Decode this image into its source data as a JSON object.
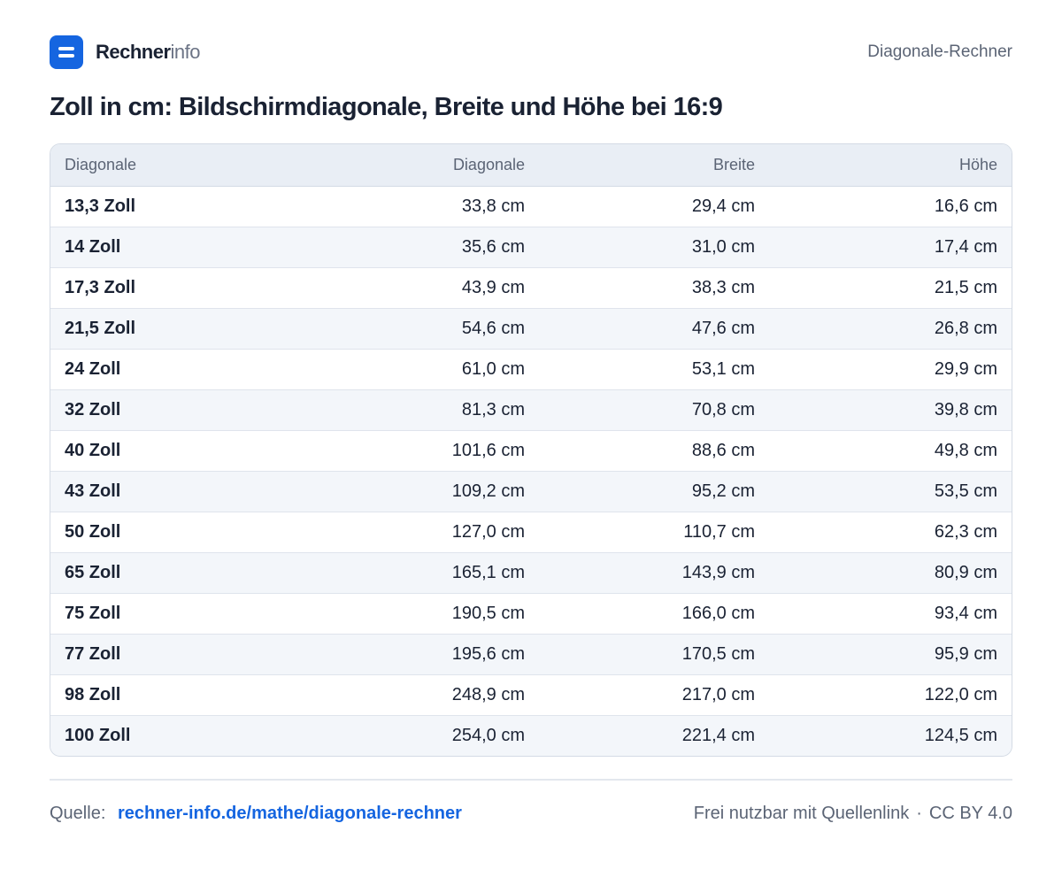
{
  "header": {
    "brand_strong": "Rechner",
    "brand_light": "info",
    "right_label": "Diagonale-Rechner"
  },
  "title": "Zoll in cm: Bildschirmdiagonale, Breite und Höhe bei 16:9",
  "table": {
    "columns": [
      "Diagonale",
      "Diagonale",
      "Breite",
      "Höhe"
    ],
    "rows": [
      [
        "13,3 Zoll",
        "33,8 cm",
        "29,4 cm",
        "16,6 cm"
      ],
      [
        "14 Zoll",
        "35,6 cm",
        "31,0 cm",
        "17,4 cm"
      ],
      [
        "17,3 Zoll",
        "43,9 cm",
        "38,3 cm",
        "21,5 cm"
      ],
      [
        "21,5 Zoll",
        "54,6 cm",
        "47,6 cm",
        "26,8 cm"
      ],
      [
        "24 Zoll",
        "61,0 cm",
        "53,1 cm",
        "29,9 cm"
      ],
      [
        "32 Zoll",
        "81,3 cm",
        "70,8 cm",
        "39,8 cm"
      ],
      [
        "40 Zoll",
        "101,6 cm",
        "88,6 cm",
        "49,8 cm"
      ],
      [
        "43 Zoll",
        "109,2 cm",
        "95,2 cm",
        "53,5 cm"
      ],
      [
        "50 Zoll",
        "127,0 cm",
        "110,7 cm",
        "62,3 cm"
      ],
      [
        "65 Zoll",
        "165,1 cm",
        "143,9 cm",
        "80,9 cm"
      ],
      [
        "75 Zoll",
        "190,5 cm",
        "166,0 cm",
        "93,4 cm"
      ],
      [
        "77 Zoll",
        "195,6 cm",
        "170,5 cm",
        "95,9 cm"
      ],
      [
        "98 Zoll",
        "248,9 cm",
        "217,0 cm",
        "122,0 cm"
      ],
      [
        "100 Zoll",
        "254,0 cm",
        "221,4 cm",
        "124,5 cm"
      ]
    ]
  },
  "footer": {
    "source_label": "Quelle:",
    "source_link": "rechner-info.de/mathe/diagonale-rechner",
    "license_text": "Frei nutzbar mit Quellenlink",
    "separator": "·",
    "license": "CC BY 4.0"
  },
  "colors": {
    "accent": "#1565e0",
    "header_bg": "#e9eef5",
    "row_alt": "#f3f6fa",
    "text": "#1a2233",
    "muted": "#5b6475"
  }
}
